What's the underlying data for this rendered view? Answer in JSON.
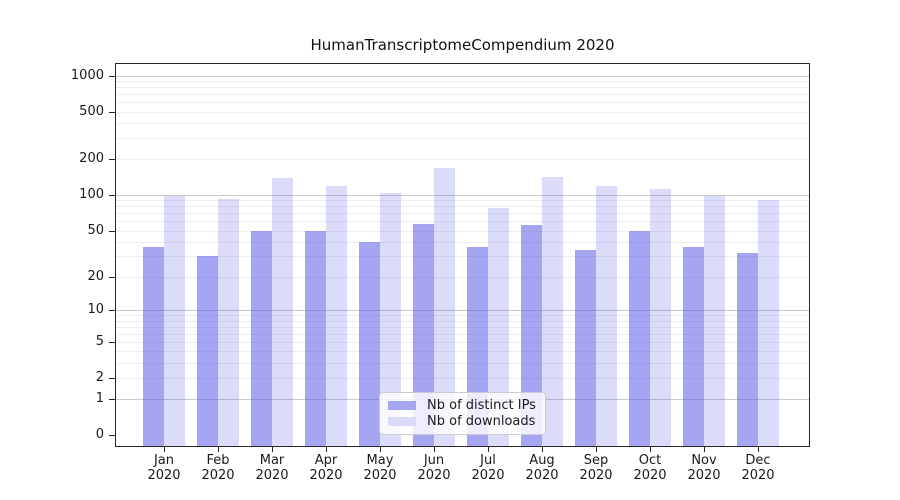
{
  "chart_data": {
    "type": "bar",
    "title": "HumanTranscriptomeCompendium 2020",
    "x_months": [
      "Jan",
      "Feb",
      "Mar",
      "Apr",
      "May",
      "Jun",
      "Jul",
      "Aug",
      "Sep",
      "Oct",
      "Nov",
      "Dec"
    ],
    "x_year": "2020",
    "series": [
      {
        "name": "Nb of distinct IPs",
        "values": [
          36,
          30,
          50,
          50,
          40,
          57,
          36,
          56,
          34,
          50,
          36,
          32
        ],
        "base_color": "#6464e8",
        "fill_alpha": 0.58,
        "legend_swatch_color": "#a5a5f0"
      },
      {
        "name": "Nb of downloads",
        "values": [
          98,
          93,
          138,
          119,
          105,
          168,
          78,
          142,
          120,
          113,
          98,
          91
        ],
        "base_color": "#6464e8",
        "fill_alpha": 0.23,
        "legend_swatch_color": "#dbdbf8"
      }
    ],
    "y_ticks": [
      0,
      1,
      2,
      5,
      10,
      20,
      50,
      100,
      200,
      500,
      1000
    ],
    "y_scale": "symlog",
    "ylim": [
      0,
      1100
    ],
    "grid": true,
    "legend_position": "lower center"
  },
  "style": {
    "major_grid_color": "#c9c9c9",
    "minor_grid_color": "#ededed",
    "spine_color": "#262626",
    "text_color": "#1a1a1a",
    "legend_bg": "rgba(255,255,255,0.8)",
    "legend_border": "#cccccc",
    "background": "#ffffff"
  }
}
